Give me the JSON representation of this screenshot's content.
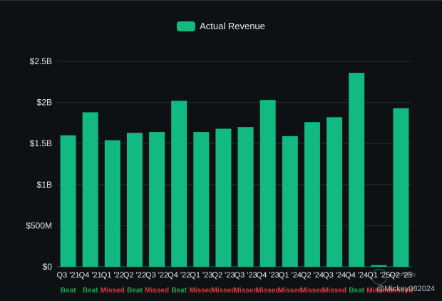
{
  "chart_data": {
    "type": "bar",
    "title": "",
    "legend": [
      {
        "label": "Actual Revenue",
        "color": "#12b981"
      }
    ],
    "legend_position": "top-center",
    "categories": [
      "Q3 '21",
      "Q4 '21",
      "Q1 '22",
      "Q2 '22",
      "Q3 '22",
      "Q4 '22",
      "Q1 '23",
      "Q2 '23",
      "Q3 '23",
      "Q4 '23",
      "Q1 '24",
      "Q2 '24",
      "Q3 '24",
      "Q4 '24",
      "Q1 '25",
      "Q2 '25"
    ],
    "series": [
      {
        "name": "Actual Revenue",
        "color": "#12b981",
        "values": [
          1.6,
          1.88,
          1.54,
          1.63,
          1.64,
          2.02,
          1.64,
          1.68,
          1.7,
          2.03,
          1.59,
          1.76,
          1.82,
          2.36,
          0.02,
          1.93
        ]
      }
    ],
    "status": [
      "Beat",
      "Beat",
      "Missed",
      "Beat",
      "Missed",
      "Beat",
      "Missed",
      "Missed",
      "Missed",
      "Missed",
      "Missed",
      "Missed",
      "Missed",
      "Beat",
      "Missed",
      "Missed"
    ],
    "status_colors": {
      "Beat": "#1fa34a",
      "Missed": "#e03a3a"
    },
    "ylim": [
      0,
      2.5
    ],
    "yticks": [
      0,
      0.5,
      1,
      1.5,
      2,
      2.5
    ],
    "ytick_labels": [
      "$0",
      "$500M",
      "$1B",
      "$1.5B",
      "$2B",
      "$2.5B"
    ],
    "grid": true,
    "xlabel": "",
    "ylabel": ""
  },
  "watermark": {
    "handle": "@Mickey082024",
    "community": "Community"
  }
}
